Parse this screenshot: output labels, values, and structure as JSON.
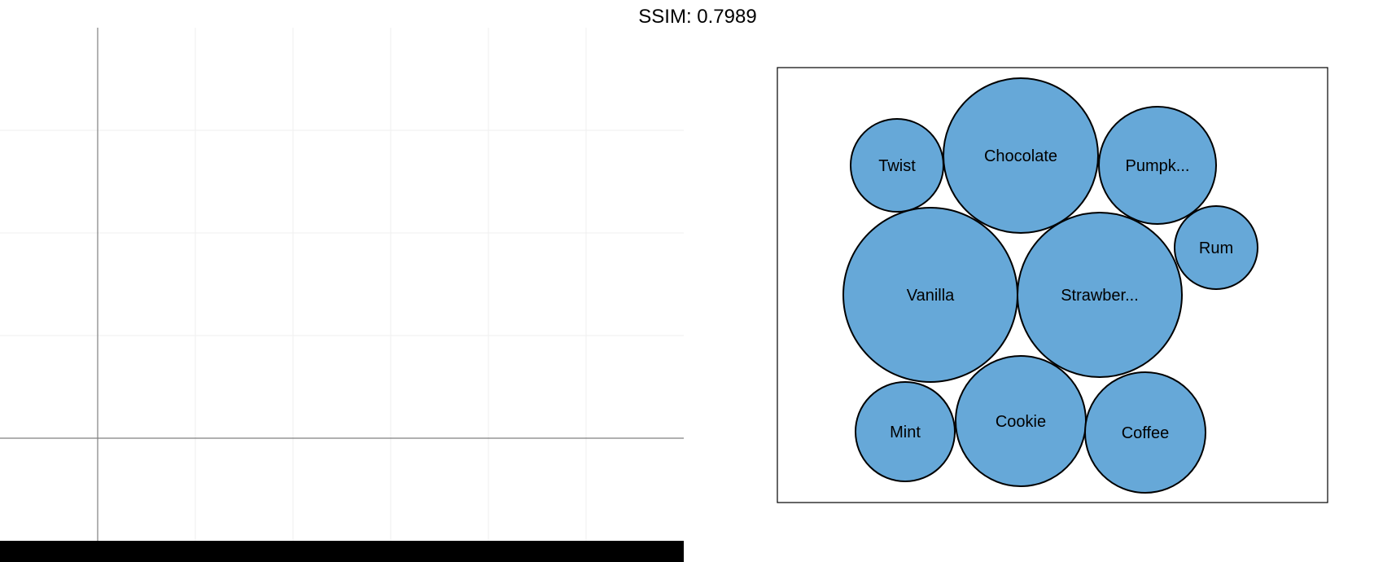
{
  "header": {
    "title": "SSIM: 0.7989"
  },
  "left_panel": {
    "background": "#ffffff",
    "grid_color": "#efefef",
    "axis_color": "#808080",
    "bottom_bar_color": "#000000"
  },
  "chart_data": {
    "type": "bubble",
    "title": "",
    "colors": {
      "fill": "#66a8d8",
      "stroke": "#000000",
      "frame": "#000000"
    },
    "bubbles": [
      {
        "label": "Twist"
      },
      {
        "label": "Chocolate"
      },
      {
        "label": "Pumpk..."
      },
      {
        "label": "Rum"
      },
      {
        "label": "Vanilla"
      },
      {
        "label": "Strawber..."
      },
      {
        "label": "Mint"
      },
      {
        "label": "Cookie"
      },
      {
        "label": "Coffee"
      }
    ]
  }
}
